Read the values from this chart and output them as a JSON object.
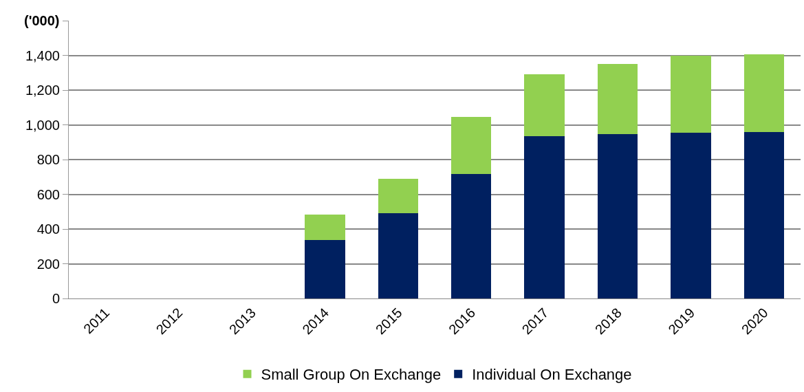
{
  "chart_data": {
    "type": "bar",
    "stacked": true,
    "ylabel": "('000)",
    "categories": [
      "2011",
      "2012",
      "2013",
      "2014",
      "2015",
      "2016",
      "2017",
      "2018",
      "2019",
      "2020"
    ],
    "series": [
      {
        "name": "Individual On Exchange",
        "color": "#002060",
        "values": [
          null,
          null,
          null,
          335,
          490,
          715,
          935,
          945,
          955,
          960
        ]
      },
      {
        "name": "Small Group On Exchange",
        "color": "#92d050",
        "values": [
          null,
          null,
          null,
          150,
          200,
          330,
          355,
          405,
          445,
          445
        ]
      }
    ],
    "ylim": [
      0,
      1600
    ],
    "yticks": [
      0,
      {
        "value": 200,
        "label": "200"
      },
      {
        "value": 400,
        "label": "400"
      },
      {
        "value": 600,
        "label": "600"
      },
      {
        "value": 800,
        "label": "800"
      },
      {
        "value": 1000,
        "label": "1,000"
      },
      {
        "value": 1200,
        "label": "1,200"
      },
      {
        "value": 1400,
        "label": "1,400"
      },
      {
        "value": 1600,
        "label": null
      }
    ],
    "grid": "y",
    "legend": "bottom"
  }
}
